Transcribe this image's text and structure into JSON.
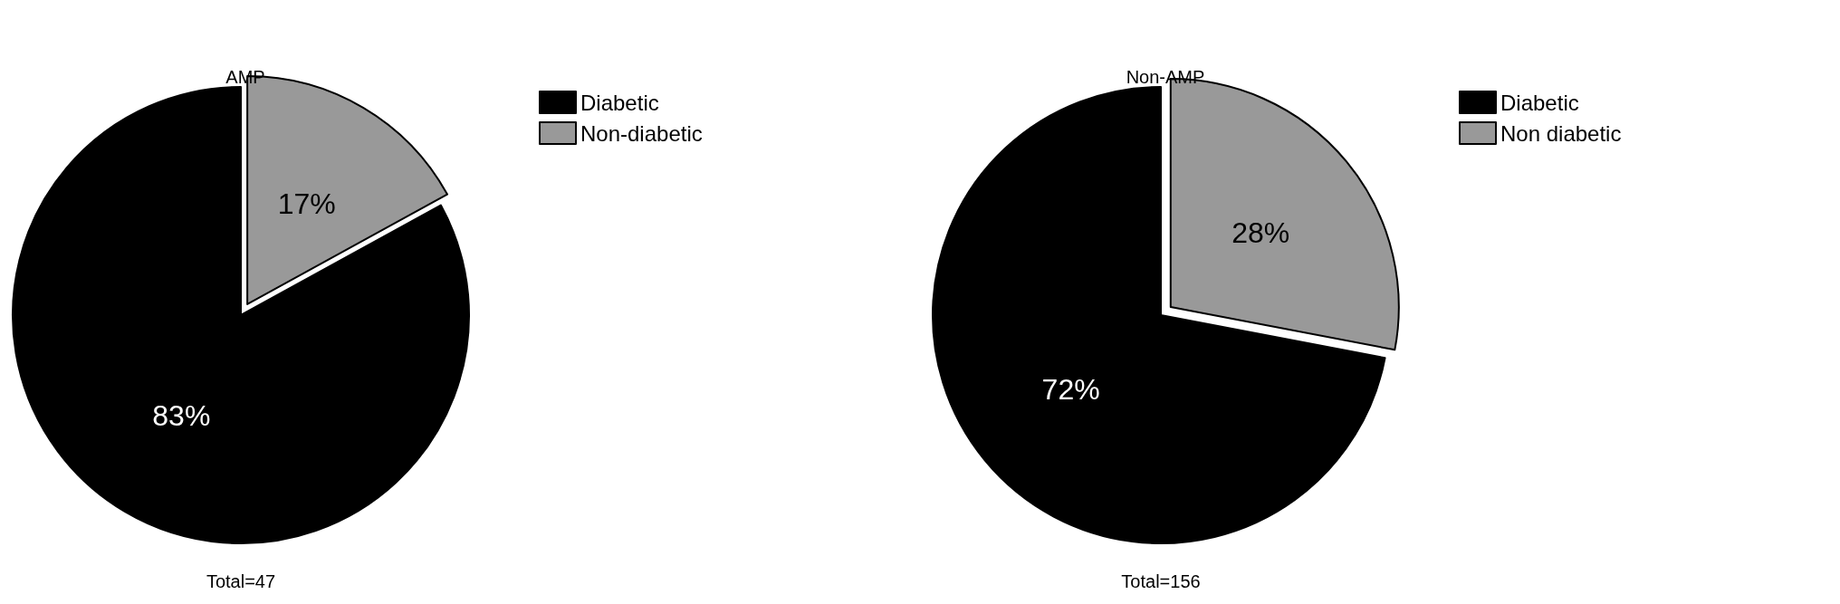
{
  "chart_data": [
    {
      "type": "pie",
      "title": "AMP",
      "categories": [
        "Diabetic",
        "Non-diabetic"
      ],
      "values": [
        83,
        17
      ],
      "value_labels": [
        "83%",
        "17%"
      ],
      "colors": [
        "#000000",
        "#999999"
      ],
      "legend": "top right",
      "annotations": [
        "Total=47"
      ]
    },
    {
      "type": "pie",
      "title": "Non-AMP",
      "categories": [
        "Diabetic",
        "Non diabetic"
      ],
      "values": [
        72,
        28
      ],
      "value_labels": [
        "72%",
        "28%"
      ],
      "colors": [
        "#000000",
        "#999999"
      ],
      "legend": "top right",
      "annotations": [
        "Total=156"
      ]
    }
  ]
}
